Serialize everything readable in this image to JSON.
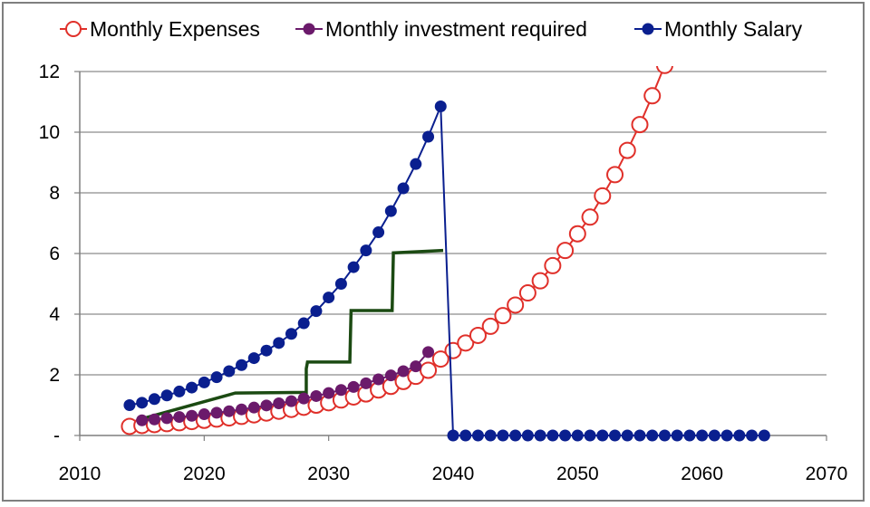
{
  "chart_data": {
    "type": "line",
    "title": "",
    "xlabel": "",
    "ylabel": "",
    "xlim": [
      2010,
      2070
    ],
    "ylim": [
      0,
      12
    ],
    "x_ticks": [
      "2010",
      "2020",
      "2030",
      "2040",
      "2050",
      "2060",
      "2070"
    ],
    "y_ticks": [
      "-",
      "2",
      "4",
      "6",
      "8",
      "10",
      "12"
    ],
    "grid": "horizontal",
    "legend_position": "top",
    "series": [
      {
        "name": "Monthly Expenses",
        "color": "#e0302a",
        "marker": "open-circle",
        "x": [
          2014,
          2015,
          2016,
          2017,
          2018,
          2019,
          2020,
          2021,
          2022,
          2023,
          2024,
          2025,
          2026,
          2027,
          2028,
          2029,
          2030,
          2031,
          2032,
          2033,
          2034,
          2035,
          2036,
          2037,
          2038,
          2039,
          2040,
          2041,
          2042,
          2043,
          2044,
          2045,
          2046,
          2047,
          2048,
          2049,
          2050,
          2051,
          2052,
          2053,
          2054,
          2055,
          2056,
          2057
        ],
        "y": [
          0.3,
          0.33,
          0.36,
          0.39,
          0.42,
          0.46,
          0.5,
          0.54,
          0.58,
          0.63,
          0.68,
          0.74,
          0.8,
          0.86,
          0.93,
          1.0,
          1.08,
          1.17,
          1.27,
          1.37,
          1.5,
          1.62,
          1.78,
          1.95,
          2.15,
          2.52,
          2.8,
          3.05,
          3.3,
          3.6,
          3.95,
          4.3,
          4.7,
          5.1,
          5.6,
          6.1,
          6.65,
          7.2,
          7.9,
          8.6,
          9.4,
          10.25,
          11.2,
          12.2
        ]
      },
      {
        "name": "Monthly investment required",
        "color": "#6b1a6b",
        "marker": "filled-circle",
        "x": [
          2015,
          2016,
          2017,
          2018,
          2019,
          2020,
          2021,
          2022,
          2023,
          2024,
          2025,
          2026,
          2027,
          2028,
          2029,
          2030,
          2031,
          2032,
          2033,
          2034,
          2035,
          2036,
          2037,
          2038
        ],
        "y": [
          0.5,
          0.53,
          0.57,
          0.61,
          0.65,
          0.7,
          0.75,
          0.8,
          0.86,
          0.92,
          0.99,
          1.06,
          1.13,
          1.22,
          1.3,
          1.4,
          1.5,
          1.6,
          1.72,
          1.85,
          1.98,
          2.12,
          2.28,
          2.75
        ]
      },
      {
        "name": "Monthly Salary",
        "color": "#0a1f8f",
        "marker": "filled-circle",
        "x": [
          2014,
          2015,
          2016,
          2017,
          2018,
          2019,
          2020,
          2021,
          2022,
          2023,
          2024,
          2025,
          2026,
          2027,
          2028,
          2029,
          2030,
          2031,
          2032,
          2033,
          2034,
          2035,
          2036,
          2037,
          2038,
          2039,
          2040,
          2041,
          2042,
          2043,
          2044,
          2045,
          2046,
          2047,
          2048,
          2049,
          2050,
          2051,
          2052,
          2053,
          2054,
          2055,
          2056,
          2057,
          2058,
          2059,
          2060,
          2061,
          2062,
          2063,
          2064,
          2065
        ],
        "y": [
          1.0,
          1.08,
          1.2,
          1.32,
          1.45,
          1.58,
          1.75,
          1.92,
          2.12,
          2.32,
          2.55,
          2.8,
          3.05,
          3.35,
          3.7,
          4.1,
          4.55,
          5.0,
          5.55,
          6.1,
          6.7,
          7.4,
          8.15,
          8.95,
          9.85,
          10.85,
          0,
          0,
          0,
          0,
          0,
          0,
          0,
          0,
          0,
          0,
          0,
          0,
          0,
          0,
          0,
          0,
          0,
          0,
          0,
          0,
          0,
          0,
          0,
          0,
          0,
          0
        ]
      }
    ],
    "annotation_line": {
      "color": "#1b4a12",
      "x": [
        2015,
        2022.5,
        2028.2,
        2028.2,
        2028.3,
        2031.7,
        2031.8,
        2035.1,
        2035.2,
        2039.2
      ],
      "y": [
        0.55,
        1.4,
        1.42,
        2.2,
        2.42,
        2.42,
        4.12,
        4.12,
        6.02,
        6.1
      ]
    }
  }
}
